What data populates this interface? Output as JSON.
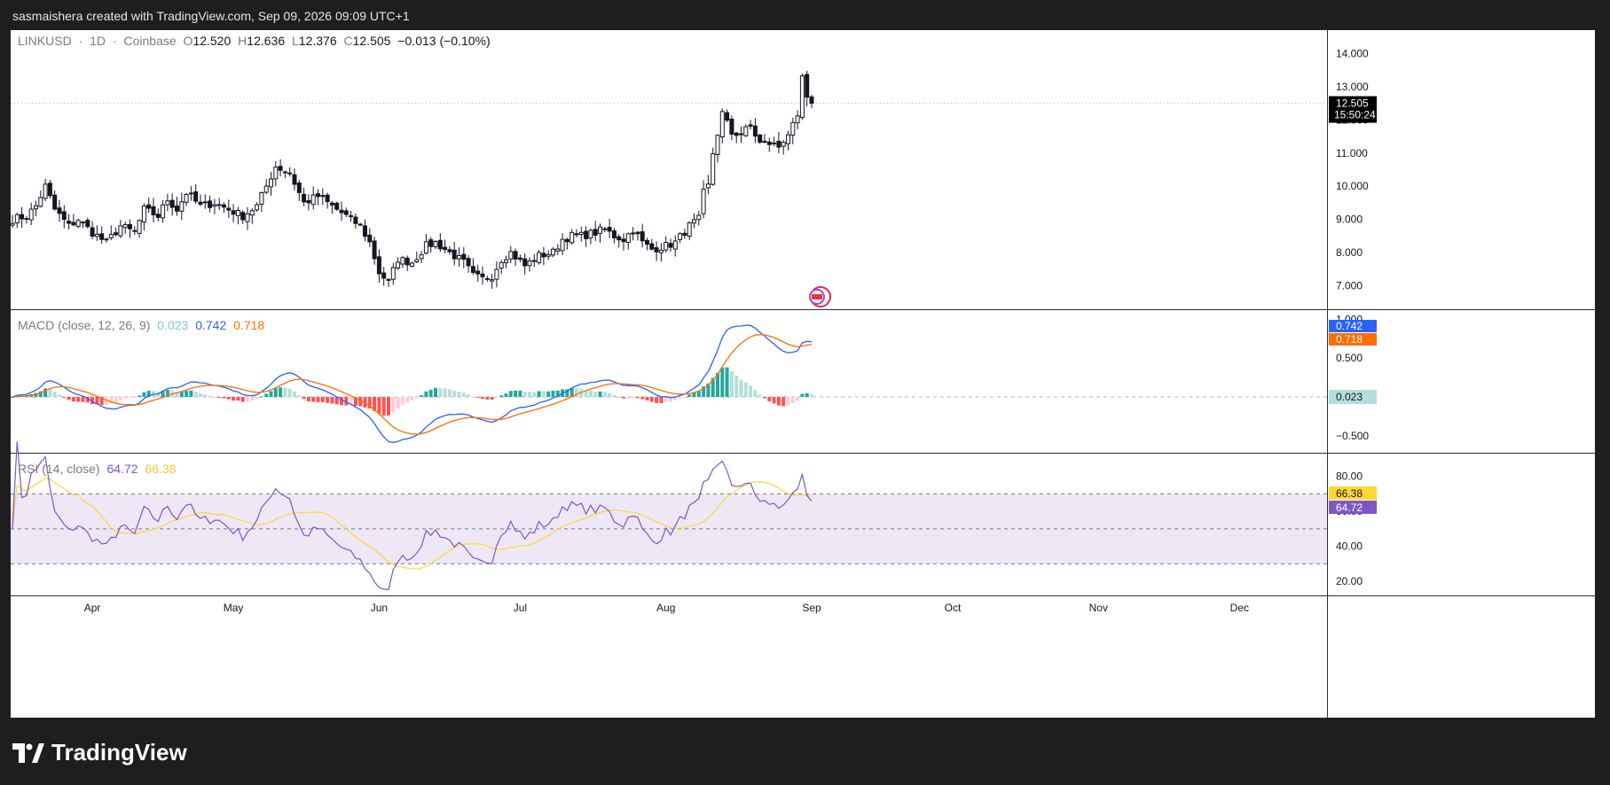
{
  "caption": "sasmaishera created with TradingView.com, Sep 09, 2026 09:09 UTC+1",
  "footer": {
    "brand": "TradingView",
    "logo_icon": "tradingview-logo-icon"
  },
  "colors": {
    "up": "#131722",
    "down": "#131722",
    "macd_line": "#2962ff",
    "signal_line": "#ff6d00",
    "hist_up_strong": "#26a69a",
    "hist_up_weak": "#b2dfdb",
    "hist_down_strong": "#ff5252",
    "hist_down_weak": "#ffcdd2",
    "rsi_line": "#7e57c2",
    "rsi_ma": "#fdd835",
    "rsi_band": "#ede7f6"
  },
  "main": {
    "symbol": "LINKUSD",
    "interval": "1D",
    "exchange": "Coinbase",
    "sep": "·",
    "o_label": "O",
    "o_val": "12.520",
    "h_label": "H",
    "h_val": "12.636",
    "l_label": "L",
    "l_val": "12.376",
    "c_label": "C",
    "c_val": "12.505",
    "change": "−0.013 (−0.10%)",
    "last_price": "12.505",
    "countdown": "15:50:24"
  },
  "macd": {
    "title": "MACD (close, 12, 26, 9)",
    "hist_val": "0.023",
    "macd_val": "0.742",
    "signal_val": "0.718"
  },
  "rsi": {
    "title": "RSI (14, close)",
    "rsi_val": "64.72",
    "ma_val": "66.38"
  },
  "chart_data": {
    "type": "candlestick",
    "x_axis": {
      "labels": [
        "Apr",
        "May",
        "Jun",
        "Jul",
        "Aug",
        "Sep",
        "Oct",
        "Nov",
        "Dec"
      ],
      "label_days": [
        17,
        47,
        78,
        108,
        139,
        170,
        200,
        231,
        261
      ]
    },
    "price_axis": {
      "ticks": [
        "14.000",
        "13.000",
        "12.000",
        "11.000",
        "10.000",
        "9.000",
        "8.000",
        "7.000"
      ],
      "range": [
        6.5,
        14.5
      ]
    },
    "macd_axis": {
      "ticks": [
        "1.000",
        "0.500",
        "−0.500"
      ],
      "range": [
        -0.65,
        1.05
      ]
    },
    "rsi_axis": {
      "ticks": [
        "80.00",
        "60.00",
        "40.00",
        "20.00"
      ],
      "range": [
        15,
        90
      ],
      "bands": [
        70,
        50,
        30
      ]
    },
    "anchors": [
      [
        0,
        9.0
      ],
      [
        3,
        9.1
      ],
      [
        5,
        9.4
      ],
      [
        7,
        10.0
      ],
      [
        9,
        9.3
      ],
      [
        12,
        8.8
      ],
      [
        14,
        9.0
      ],
      [
        17,
        8.6
      ],
      [
        20,
        8.3
      ],
      [
        23,
        8.8
      ],
      [
        26,
        8.6
      ],
      [
        28,
        9.3
      ],
      [
        31,
        9.1
      ],
      [
        33,
        9.6
      ],
      [
        35,
        9.3
      ],
      [
        37,
        9.8
      ],
      [
        40,
        9.4
      ],
      [
        43,
        9.5
      ],
      [
        46,
        9.3
      ],
      [
        49,
        9.1
      ],
      [
        52,
        9.4
      ],
      [
        54,
        10.0
      ],
      [
        56,
        10.6
      ],
      [
        59,
        10.4
      ],
      [
        62,
        9.5
      ],
      [
        65,
        9.7
      ],
      [
        68,
        9.4
      ],
      [
        71,
        9.1
      ],
      [
        74,
        8.8
      ],
      [
        76,
        8.3
      ],
      [
        78,
        7.4
      ],
      [
        80,
        7.1
      ],
      [
        82,
        7.8
      ],
      [
        85,
        7.7
      ],
      [
        88,
        8.2
      ],
      [
        90,
        8.3
      ],
      [
        93,
        8.0
      ],
      [
        96,
        7.7
      ],
      [
        98,
        7.3
      ],
      [
        100,
        7.2
      ],
      [
        102,
        7.3
      ],
      [
        104,
        7.8
      ],
      [
        106,
        8.0
      ],
      [
        109,
        7.6
      ],
      [
        112,
        7.9
      ],
      [
        115,
        8.0
      ],
      [
        117,
        8.4
      ],
      [
        119,
        8.5
      ],
      [
        121,
        8.5
      ],
      [
        124,
        8.6
      ],
      [
        126,
        8.7
      ],
      [
        128,
        8.5
      ],
      [
        130,
        8.4
      ],
      [
        132,
        8.7
      ],
      [
        134,
        8.3
      ],
      [
        136,
        8.1
      ],
      [
        139,
        8.2
      ],
      [
        141,
        8.3
      ],
      [
        144,
        8.8
      ],
      [
        146,
        9.0
      ],
      [
        147,
        9.8
      ],
      [
        148,
        10.0
      ],
      [
        149,
        11.0
      ],
      [
        150,
        11.6
      ],
      [
        151,
        12.2
      ],
      [
        153,
        11.6
      ],
      [
        155,
        11.6
      ],
      [
        157,
        11.8
      ],
      [
        159,
        11.3
      ],
      [
        161,
        11.3
      ],
      [
        163,
        11.2
      ],
      [
        165,
        11.6
      ],
      [
        167,
        12.0
      ],
      [
        168,
        13.3
      ],
      [
        169,
        12.6
      ],
      [
        170,
        12.505
      ]
    ],
    "last_close": 12.505
  }
}
